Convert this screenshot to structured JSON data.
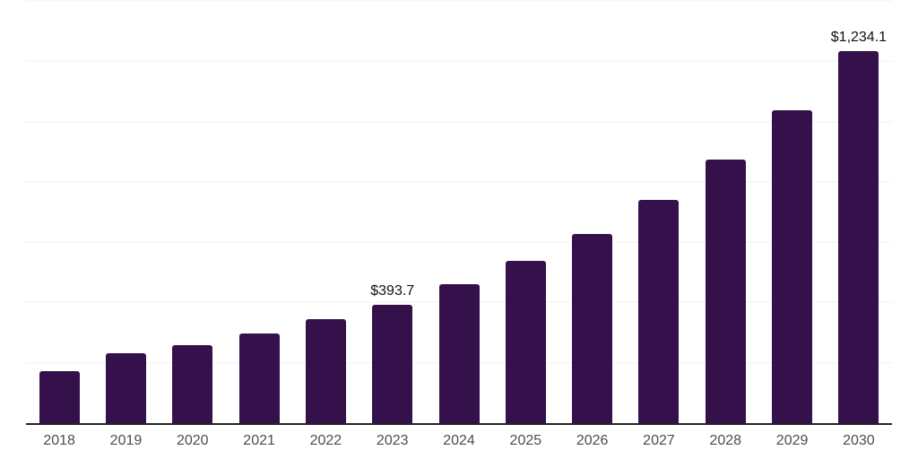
{
  "chart_data": {
    "type": "bar",
    "title": "",
    "xlabel": "",
    "ylabel": "",
    "categories": [
      "2018",
      "2019",
      "2020",
      "2021",
      "2022",
      "2023",
      "2024",
      "2025",
      "2026",
      "2027",
      "2028",
      "2029",
      "2030"
    ],
    "values": [
      171.5,
      231.0,
      257.7,
      297.2,
      344.8,
      393.7,
      459.8,
      537.9,
      628.0,
      739.1,
      874.7,
      1038.1,
      1234.1
    ],
    "value_labels": {
      "2023": "$393.7",
      "2030": "$1,234.1"
    },
    "ylim": [
      0,
      1400
    ],
    "gridline_step": 200,
    "grid": true,
    "legend": false,
    "y_axis_tick_labels": false,
    "colors": {
      "bar": "#35114C",
      "gridline": "#f2f2f2",
      "axis_line": "#262626",
      "tick_label": "#4d4d4d",
      "value_label": "#111111",
      "background": "#ffffff"
    }
  }
}
